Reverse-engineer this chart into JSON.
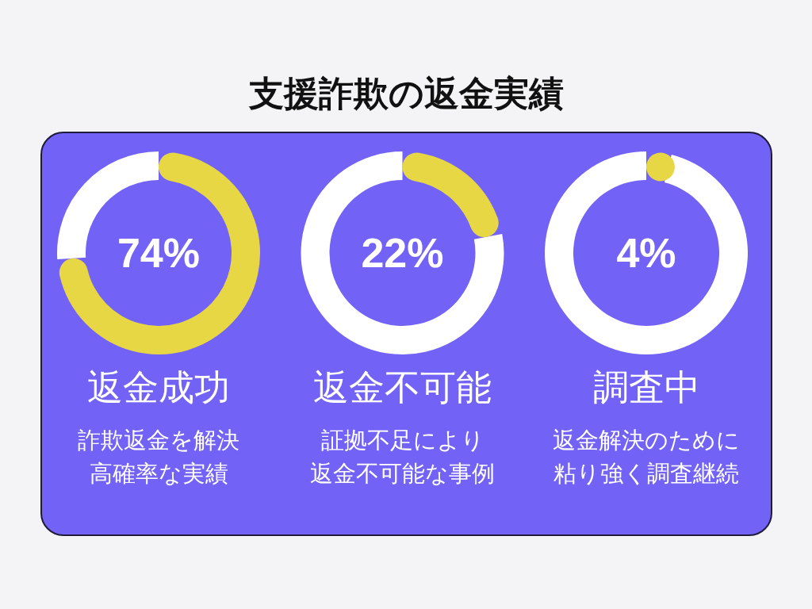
{
  "chart_data": [
    {
      "type": "other",
      "title": "支援詐欺の返金実績"
    },
    {
      "type": "donut",
      "title": "返金成功",
      "categories": [
        null,
        null
      ],
      "values": [
        74,
        26
      ],
      "colors": [
        "#e8d744",
        "#ffffff"
      ],
      "annotations": [
        "74%",
        "詐欺返金を解決",
        "高確率な実績"
      ]
    },
    {
      "type": "donut",
      "title": "返金不可能",
      "categories": [
        null,
        null
      ],
      "values": [
        22,
        78
      ],
      "colors": [
        "#e8d744",
        "#ffffff"
      ],
      "annotations": [
        "22%",
        "証拠不足により",
        "返金不可能な事例"
      ]
    },
    {
      "type": "donut",
      "title": "調査中",
      "categories": [
        null,
        null
      ],
      "values": [
        4,
        96
      ],
      "colors": [
        "#e8d744",
        "#ffffff"
      ],
      "annotations": [
        "4%",
        "返金解決のために",
        "粘り強く調査継続"
      ]
    }
  ]
}
